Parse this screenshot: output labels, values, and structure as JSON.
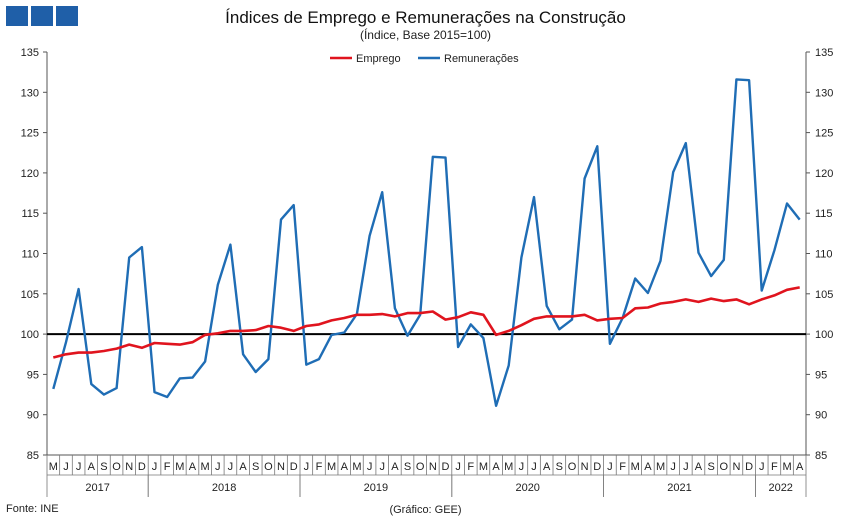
{
  "header": {
    "title": "Índices de Emprego e Remunerações na Construção",
    "subtitle": "(Índice, Base 2015=100)"
  },
  "footer": {
    "source": "Fonte: INE",
    "credit": "(Gráfico: GEE)"
  },
  "colors": {
    "emprego": "#e0141e",
    "remuneracoes": "#1f6db5",
    "baseline": "#000000",
    "logo": "#1f5fa8"
  },
  "chart_data": {
    "type": "line",
    "title": "Índices de Emprego e Remunerações na Construção",
    "subtitle": "(Índice, Base 2015=100)",
    "ylim": [
      85,
      135
    ],
    "yticks": [
      85,
      90,
      95,
      100,
      105,
      110,
      115,
      120,
      125,
      130,
      135
    ],
    "reference_line": 100,
    "legend": {
      "position": "top-center",
      "entries": [
        "Emprego",
        "Remunerações"
      ]
    },
    "x": [
      "M",
      "J",
      "J",
      "A",
      "S",
      "O",
      "N",
      "D",
      "J",
      "F",
      "M",
      "A",
      "M",
      "J",
      "J",
      "A",
      "S",
      "O",
      "N",
      "D",
      "J",
      "F",
      "M",
      "A",
      "M",
      "J",
      "J",
      "A",
      "S",
      "O",
      "N",
      "D",
      "J",
      "F",
      "M",
      "A",
      "M",
      "J",
      "J",
      "A",
      "S",
      "O",
      "N",
      "D",
      "J",
      "F",
      "M",
      "A",
      "M",
      "J",
      "J",
      "A",
      "S",
      "O",
      "N",
      "D",
      "J",
      "F",
      "M",
      "A"
    ],
    "years": [
      {
        "label": "2017",
        "start": 0,
        "end": 7
      },
      {
        "label": "2018",
        "start": 8,
        "end": 19
      },
      {
        "label": "2019",
        "start": 20,
        "end": 31
      },
      {
        "label": "2020",
        "start": 32,
        "end": 43
      },
      {
        "label": "2021",
        "start": 44,
        "end": 55
      },
      {
        "label": "2022",
        "start": 56,
        "end": 59
      }
    ],
    "series": [
      {
        "name": "Emprego",
        "values": [
          97.1,
          97.5,
          97.7,
          97.7,
          97.9,
          98.2,
          98.7,
          98.3,
          98.9,
          98.8,
          98.7,
          99.0,
          99.9,
          100.1,
          100.4,
          100.4,
          100.5,
          101.0,
          100.8,
          100.4,
          101.0,
          101.2,
          101.7,
          102.0,
          102.4,
          102.4,
          102.5,
          102.2,
          102.6,
          102.6,
          102.8,
          101.8,
          102.1,
          102.7,
          102.4,
          99.9,
          100.4,
          101.1,
          101.9,
          102.2,
          102.2,
          102.2,
          102.4,
          101.7,
          101.9,
          102.0,
          103.2,
          103.3,
          103.8,
          104.0,
          104.3,
          104.0,
          104.4,
          104.1,
          104.3,
          103.7,
          104.3,
          104.8,
          105.5,
          105.8
        ]
      },
      {
        "name": "Remunerações",
        "values": [
          93.2,
          99.0,
          105.6,
          93.8,
          92.5,
          93.3,
          109.5,
          110.8,
          92.8,
          92.2,
          94.5,
          94.6,
          96.6,
          106.1,
          111.1,
          97.5,
          95.3,
          96.9,
          114.2,
          116.0,
          96.2,
          96.9,
          99.9,
          100.2,
          102.5,
          112.2,
          117.6,
          103.2,
          99.8,
          102.4,
          122.0,
          121.9,
          98.4,
          101.2,
          99.5,
          91.1,
          96.1,
          109.5,
          117.0,
          103.5,
          100.6,
          101.8,
          119.3,
          123.3,
          98.8,
          102.0,
          106.9,
          105.1,
          109.1,
          120.1,
          123.7,
          110.1,
          107.2,
          109.2,
          131.6,
          131.5,
          105.4,
          110.4,
          116.2,
          114.2
        ]
      }
    ]
  }
}
